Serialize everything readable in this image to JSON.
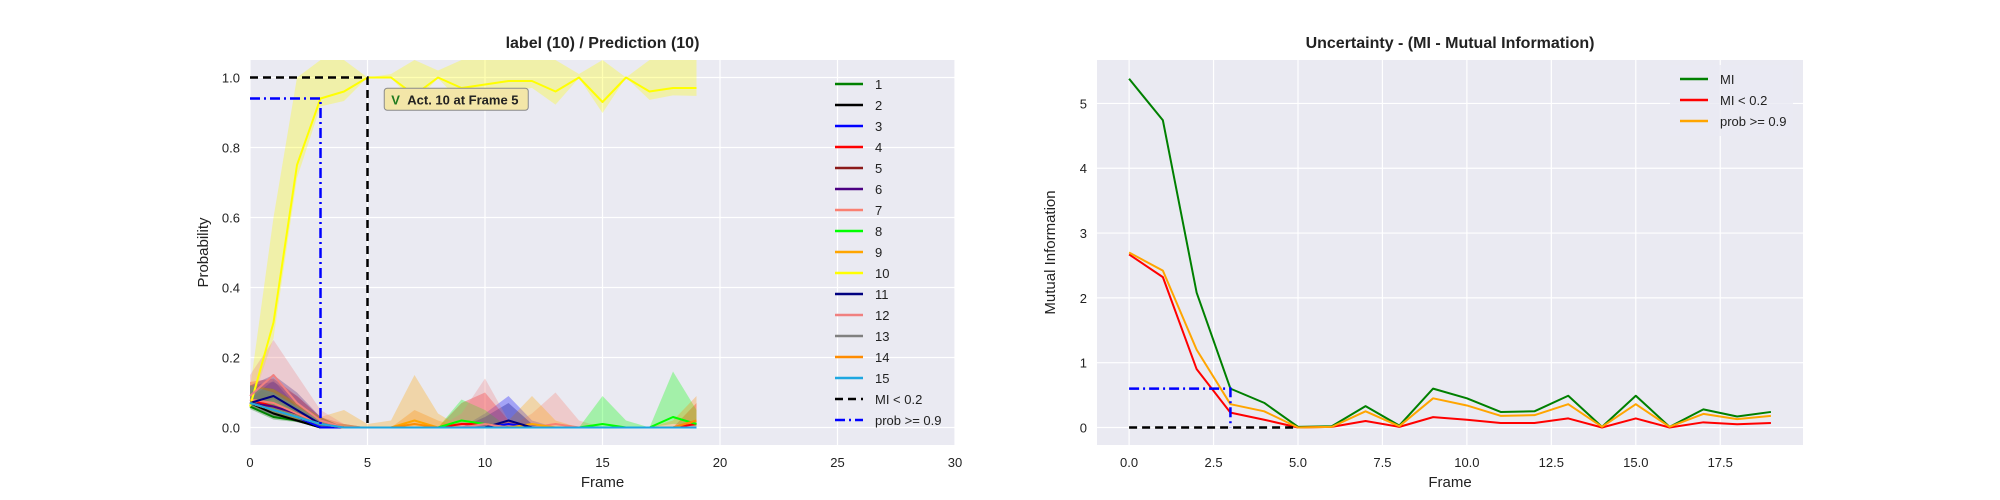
{
  "chart_data": [
    {
      "type": "line",
      "title": "label (10) / Prediction (10)",
      "xlabel": "Frame",
      "ylabel": "Probability",
      "xlim": [
        0,
        30
      ],
      "ylim": [
        -0.05,
        1.05
      ],
      "xticks": [
        "0",
        "5",
        "10",
        "15",
        "20",
        "25",
        "30"
      ],
      "yticks": [
        "0.0",
        "0.2",
        "0.4",
        "0.6",
        "0.8",
        "1.0"
      ],
      "grid": true,
      "legend_position": "right",
      "annotation": {
        "prefix": "V",
        "text": "Act. 10 at Frame 5",
        "x": 11.5,
        "y": 0.935
      },
      "x": [
        0,
        1,
        2,
        3,
        4,
        5,
        6,
        7,
        8,
        9,
        10,
        11,
        12,
        13,
        14,
        15,
        16,
        17,
        18,
        19
      ],
      "series": [
        {
          "name": "1",
          "color": "#008000",
          "values": [
            0.06,
            0.03,
            0.02,
            0.0,
            0.0,
            0.0,
            0.0,
            0.0,
            0.0,
            0.0,
            0.0,
            0.0,
            0.0,
            0.0,
            0.0,
            0.0,
            0.0,
            0.0,
            0.0,
            0.0
          ],
          "band": [
            0.05,
            0.05,
            0.03,
            0.01,
            0.01,
            0,
            0,
            0,
            0,
            0,
            0,
            0,
            0,
            0,
            0,
            0,
            0,
            0,
            0,
            0
          ]
        },
        {
          "name": "2",
          "color": "#000000",
          "values": [
            0.07,
            0.04,
            0.02,
            0.0,
            0.0,
            0.0,
            0.0,
            0.0,
            0.0,
            0.0,
            0.0,
            0.0,
            0.0,
            0.0,
            0.0,
            0.0,
            0.0,
            0.0,
            0.0,
            0.0
          ],
          "band": [
            0.05,
            0.05,
            0.03,
            0.01,
            0,
            0,
            0,
            0,
            0,
            0,
            0,
            0,
            0,
            0,
            0,
            0,
            0,
            0,
            0,
            0
          ]
        },
        {
          "name": "3",
          "color": "#0000ff",
          "values": [
            0.07,
            0.05,
            0.03,
            0.0,
            0.0,
            0.0,
            0.0,
            0.0,
            0.0,
            0.0,
            0.0,
            0.01,
            0.0,
            0.0,
            0.0,
            0.0,
            0.0,
            0.0,
            0.0,
            0.0
          ],
          "band": [
            0.05,
            0.06,
            0.04,
            0.01,
            0,
            0,
            0,
            0,
            0,
            0,
            0.04,
            0.08,
            0.02,
            0,
            0,
            0,
            0,
            0,
            0,
            0
          ]
        },
        {
          "name": "4",
          "color": "#ff0000",
          "values": [
            0.08,
            0.06,
            0.04,
            0.01,
            0.0,
            0.0,
            0.0,
            0.0,
            0.0,
            0.01,
            0.01,
            0.0,
            0.0,
            0.0,
            0.0,
            0.0,
            0.0,
            0.0,
            0.0,
            0.01
          ],
          "band": [
            0.05,
            0.08,
            0.05,
            0.02,
            0.01,
            0,
            0,
            0,
            0,
            0.06,
            0.09,
            0.02,
            0,
            0,
            0,
            0,
            0,
            0,
            0,
            0.06
          ]
        },
        {
          "name": "5",
          "color": "#8b1a1a",
          "values": [
            0.07,
            0.05,
            0.03,
            0.01,
            0.0,
            0.0,
            0.0,
            0.0,
            0.0,
            0.0,
            0.0,
            0.0,
            0.0,
            0.0,
            0.0,
            0.0,
            0.0,
            0.0,
            0.0,
            0.0
          ],
          "band": [
            0.05,
            0.06,
            0.04,
            0.01,
            0,
            0,
            0,
            0,
            0,
            0,
            0,
            0,
            0,
            0,
            0,
            0,
            0,
            0,
            0,
            0
          ]
        },
        {
          "name": "6",
          "color": "#4b0082",
          "values": [
            0.07,
            0.06,
            0.04,
            0.01,
            0.0,
            0.0,
            0.0,
            0.0,
            0.0,
            0.0,
            0.0,
            0.0,
            0.0,
            0.0,
            0.0,
            0.0,
            0.0,
            0.0,
            0.0,
            0.0
          ],
          "band": [
            0.05,
            0.07,
            0.05,
            0.02,
            0,
            0,
            0,
            0,
            0,
            0,
            0,
            0,
            0,
            0,
            0,
            0,
            0,
            0,
            0,
            0
          ]
        },
        {
          "name": "7",
          "color": "#fa8072",
          "values": [
            0.08,
            0.07,
            0.04,
            0.01,
            0.0,
            0.0,
            0.0,
            0.0,
            0.0,
            0.0,
            0.0,
            0.0,
            0.0,
            0.01,
            0.0,
            0.0,
            0.0,
            0.0,
            0.0,
            0.0
          ],
          "band": [
            0.05,
            0.07,
            0.05,
            0.02,
            0,
            0,
            0,
            0,
            0,
            0,
            0,
            0,
            0.04,
            0.09,
            0.02,
            0,
            0,
            0,
            0,
            0
          ]
        },
        {
          "name": "8",
          "color": "#00ff00",
          "values": [
            0.07,
            0.05,
            0.03,
            0.01,
            0.0,
            0.0,
            0.0,
            0.0,
            0.0,
            0.02,
            0.01,
            0.0,
            0.0,
            0.0,
            0.0,
            0.01,
            0.0,
            0.0,
            0.03,
            0.01
          ],
          "band": [
            0.05,
            0.06,
            0.04,
            0.02,
            0,
            0,
            0,
            0,
            0,
            0.06,
            0.04,
            0,
            0,
            0,
            0,
            0.08,
            0.02,
            0,
            0.13,
            0.04
          ]
        },
        {
          "name": "9",
          "color": "#ffa500",
          "values": [
            0.07,
            0.05,
            0.03,
            0.01,
            0.0,
            0.0,
            0.0,
            0.02,
            0.0,
            0.0,
            0.0,
            0.0,
            0.01,
            0.0,
            0.0,
            0.0,
            0.0,
            0.0,
            0.0,
            0.0
          ],
          "band": [
            0.05,
            0.06,
            0.04,
            0.02,
            0.05,
            0.01,
            0.02,
            0.13,
            0.04,
            0,
            0,
            0.02,
            0.08,
            0.02,
            0,
            0,
            0,
            0,
            0,
            0
          ]
        },
        {
          "name": "10",
          "color": "#ffff00",
          "values": [
            0.06,
            0.3,
            0.75,
            0.94,
            0.96,
            1.0,
            1.0,
            0.95,
            1.0,
            0.97,
            0.98,
            0.99,
            0.99,
            0.96,
            1.0,
            0.93,
            1.0,
            0.96,
            0.97,
            0.97
          ],
          "band": [
            0.05,
            0.3,
            0.25,
            0.15,
            0.18,
            0.0,
            0.01,
            0.14,
            0.02,
            0.27,
            0.23,
            0.2,
            0.13,
            0.25,
            0.01,
            0.21,
            0.0,
            0.16,
            0.14,
            0.15
          ]
        },
        {
          "name": "11",
          "color": "#000080",
          "values": [
            0.07,
            0.09,
            0.05,
            0.01,
            0.0,
            0.0,
            0.0,
            0.0,
            0.0,
            0.0,
            0.0,
            0.02,
            0.0,
            0.0,
            0.0,
            0.0,
            0.0,
            0.0,
            0.0,
            0.0
          ],
          "band": [
            0.05,
            0.06,
            0.05,
            0.02,
            0,
            0,
            0,
            0,
            0,
            0,
            0.03,
            0.05,
            0.01,
            0,
            0,
            0,
            0,
            0,
            0,
            0
          ]
        },
        {
          "name": "12",
          "color": "#f08080",
          "values": [
            0.09,
            0.15,
            0.07,
            0.02,
            0.0,
            0.0,
            0.0,
            0.0,
            0.0,
            0.0,
            0.01,
            0.0,
            0.0,
            0.0,
            0.0,
            0.0,
            0.0,
            0.0,
            0.0,
            0.0
          ],
          "band": [
            0.06,
            0.1,
            0.08,
            0.03,
            0.01,
            0,
            0,
            0,
            0,
            0.04,
            0.13,
            0.02,
            0,
            0,
            0,
            0,
            0,
            0,
            0,
            0
          ]
        },
        {
          "name": "13",
          "color": "#808080",
          "values": [
            0.07,
            0.05,
            0.03,
            0.01,
            0.0,
            0.0,
            0.0,
            0.0,
            0.0,
            0.0,
            0.0,
            0.0,
            0.0,
            0.0,
            0.0,
            0.0,
            0.0,
            0.0,
            0.0,
            0.0
          ],
          "band": [
            0.05,
            0.06,
            0.04,
            0.02,
            0,
            0,
            0,
            0,
            0,
            0,
            0,
            0,
            0,
            0,
            0,
            0,
            0,
            0,
            0,
            0
          ]
        },
        {
          "name": "14",
          "color": "#ff8c00",
          "values": [
            0.07,
            0.05,
            0.03,
            0.01,
            0.0,
            0.0,
            0.0,
            0.01,
            0.0,
            0.0,
            0.0,
            0.0,
            0.0,
            0.0,
            0.0,
            0.0,
            0.0,
            0.0,
            0.0,
            0.02
          ],
          "band": [
            0.05,
            0.06,
            0.04,
            0.02,
            0,
            0,
            0,
            0.04,
            0.02,
            0,
            0,
            0,
            0,
            0,
            0,
            0,
            0,
            0,
            0.02,
            0.07
          ]
        },
        {
          "name": "15",
          "color": "#1ea7e1",
          "values": [
            0.07,
            0.05,
            0.03,
            0.01,
            0.0,
            0.0,
            0.0,
            0.0,
            0.0,
            0.0,
            0.0,
            0.0,
            0.0,
            0.0,
            0.0,
            0.0,
            0.0,
            0.0,
            0.0,
            0.0
          ],
          "band": [
            0.05,
            0.05,
            0.03,
            0.01,
            0,
            0,
            0,
            0,
            0,
            0,
            0,
            0,
            0,
            0,
            0,
            0,
            0,
            0,
            0,
            0
          ]
        }
      ],
      "threshold_lines": [
        {
          "name": "MI < 0.2",
          "color": "#000000",
          "style": "dashed",
          "points": [
            [
              0,
              1.0
            ],
            [
              5,
              1.0
            ],
            [
              5,
              0.0
            ]
          ]
        },
        {
          "name": "prob >= 0.9",
          "color": "#0000ff",
          "style": "dashdot",
          "points": [
            [
              0,
              0.94
            ],
            [
              3,
              0.94
            ],
            [
              3,
              0.0
            ]
          ]
        }
      ]
    },
    {
      "type": "line",
      "title": "Uncertainty - (MI - Mutual Information)",
      "xlabel": "Frame",
      "ylabel": "Mutual Information",
      "xlim": [
        -0.95,
        19.95
      ],
      "ylim": [
        -0.27,
        5.67
      ],
      "xticks": [
        {
          "v": 0,
          "label": "0.0"
        },
        {
          "v": 2.5,
          "label": "2.5"
        },
        {
          "v": 5,
          "label": "5.0"
        },
        {
          "v": 7.5,
          "label": "7.5"
        },
        {
          "v": 10,
          "label": "10.0"
        },
        {
          "v": 12.5,
          "label": "12.5"
        },
        {
          "v": 15,
          "label": "15.0"
        },
        {
          "v": 17.5,
          "label": "17.5"
        }
      ],
      "yticks": [
        {
          "v": 0,
          "label": "0"
        },
        {
          "v": 1,
          "label": "1"
        },
        {
          "v": 2,
          "label": "2"
        },
        {
          "v": 3,
          "label": "3"
        },
        {
          "v": 4,
          "label": "4"
        },
        {
          "v": 5,
          "label": "5"
        }
      ],
      "grid": true,
      "legend_position": "top-right",
      "x": [
        0,
        1,
        2,
        3,
        4,
        5,
        6,
        7,
        8,
        9,
        10,
        11,
        12,
        13,
        14,
        15,
        16,
        17,
        18,
        19
      ],
      "series": [
        {
          "name": "MI",
          "color": "#008000",
          "values": [
            5.38,
            4.74,
            2.08,
            0.6,
            0.38,
            0.01,
            0.02,
            0.33,
            0.03,
            0.6,
            0.45,
            0.24,
            0.25,
            0.49,
            0.01,
            0.49,
            0.01,
            0.28,
            0.17,
            0.24
          ]
        },
        {
          "name": "MI < 0.2",
          "color": "#ff0000",
          "values": [
            2.67,
            2.32,
            0.9,
            0.23,
            0.12,
            0.0,
            0.01,
            0.1,
            0.01,
            0.16,
            0.12,
            0.07,
            0.07,
            0.14,
            0.0,
            0.14,
            0.0,
            0.08,
            0.05,
            0.07
          ]
        },
        {
          "name": "prob >= 0.9",
          "color": "#ffa500",
          "values": [
            2.7,
            2.42,
            1.2,
            0.36,
            0.25,
            0.0,
            0.01,
            0.25,
            0.02,
            0.45,
            0.34,
            0.18,
            0.19,
            0.36,
            0.01,
            0.36,
            0.01,
            0.21,
            0.13,
            0.18
          ]
        }
      ],
      "threshold_lines": [
        {
          "color": "#000000",
          "style": "dashed",
          "points": [
            [
              0,
              0.0
            ],
            [
              5,
              0.0
            ]
          ]
        },
        {
          "color": "#0000ff",
          "style": "dashdot",
          "points": [
            [
              0,
              0.6
            ],
            [
              3,
              0.6
            ],
            [
              3,
              0.0
            ]
          ]
        }
      ]
    }
  ]
}
